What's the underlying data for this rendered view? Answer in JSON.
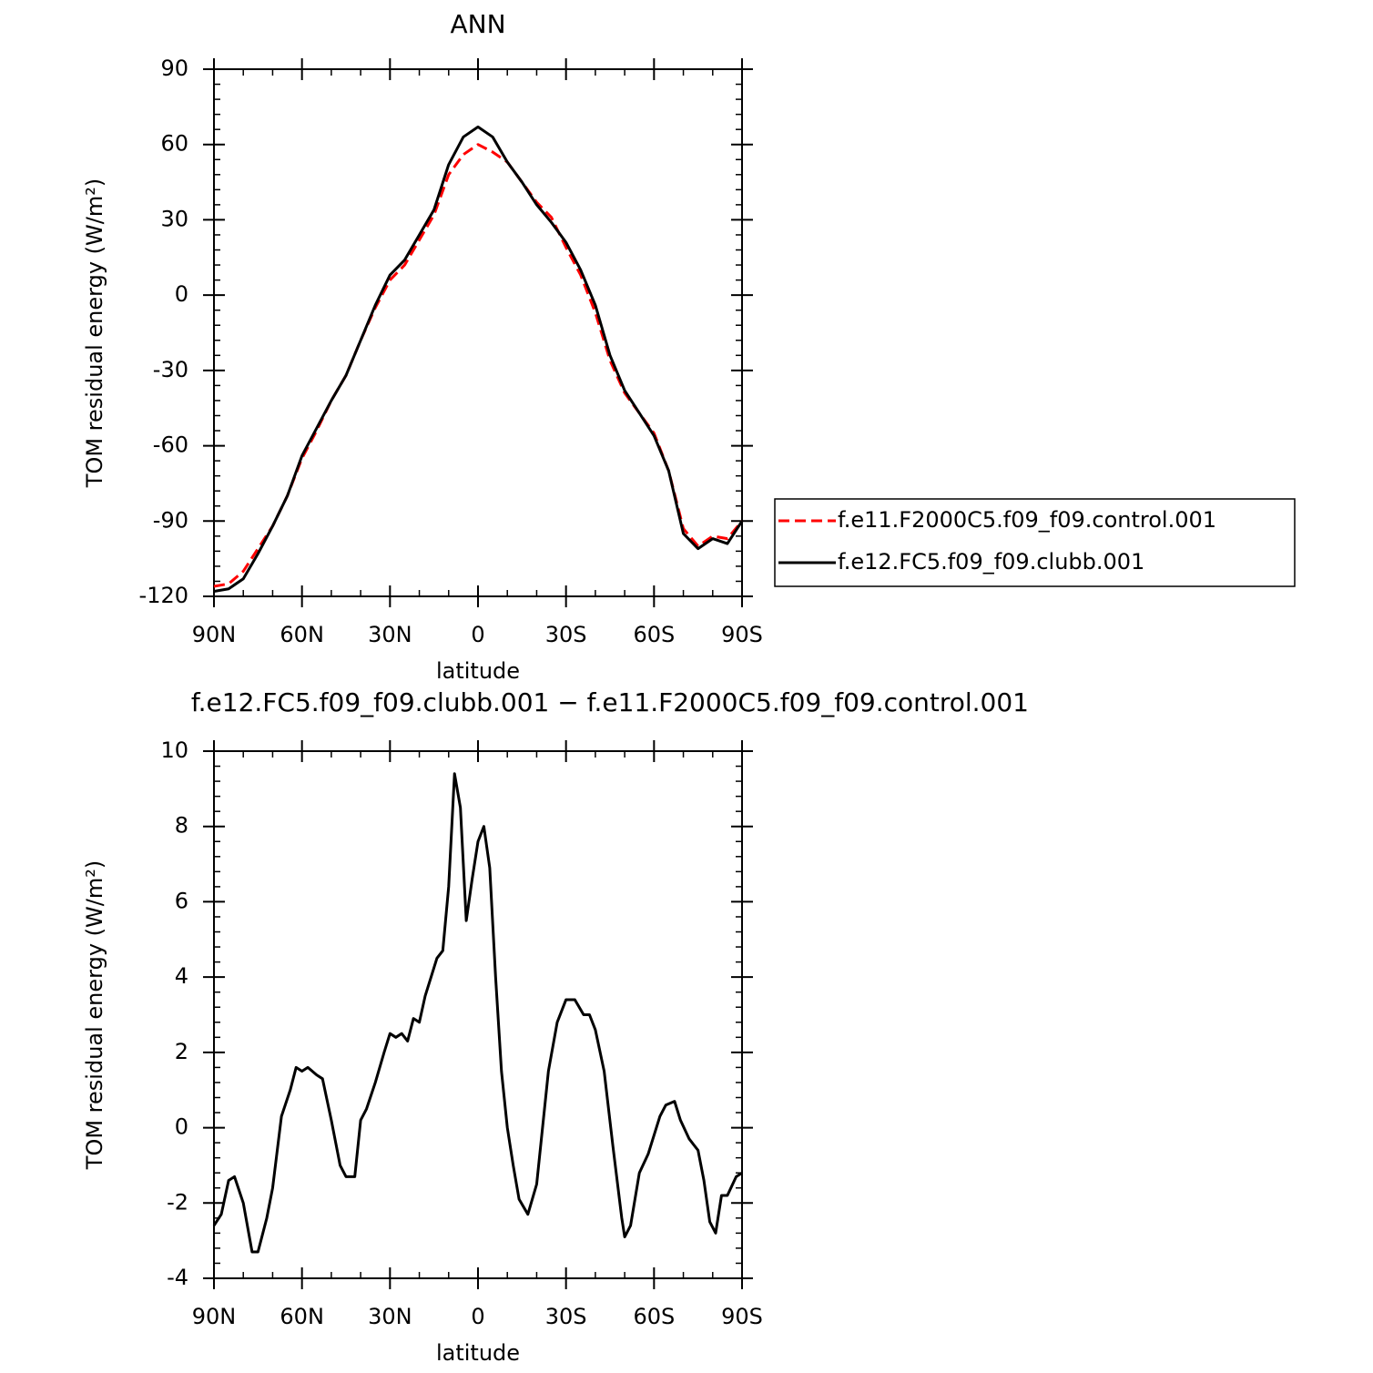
{
  "chart_data": [
    {
      "type": "line",
      "title": "ANN",
      "x_label": "latitude",
      "y_label": "TOM residual energy (W/m²)",
      "x": [
        90,
        85,
        80,
        75,
        70,
        65,
        60,
        55,
        50,
        45,
        40,
        35,
        30,
        25,
        20,
        15,
        10,
        5,
        0,
        -5,
        -10,
        -15,
        -20,
        -25,
        -30,
        -35,
        -40,
        -45,
        -50,
        -55,
        -60,
        -65,
        -70,
        -75,
        -80,
        -85,
        -90
      ],
      "series": [
        {
          "name": "f.e11.F2000C5.f09_f09.control.001",
          "color": "#ff0000",
          "dashed": true,
          "values": [
            -116,
            -115,
            -110,
            -101,
            -92,
            -80,
            -65,
            -54,
            -42,
            -32,
            -18,
            -5,
            6,
            12,
            22,
            32,
            48,
            56,
            60,
            57,
            53,
            45,
            37,
            31,
            19,
            8,
            -7,
            -26,
            -39,
            -47,
            -55,
            -70,
            -93,
            -100,
            -96,
            -97,
            -90
          ]
        },
        {
          "name": "f.e12.FC5.f09_f09.clubb.001",
          "color": "#000000",
          "dashed": false,
          "values": [
            -118,
            -117,
            -113,
            -103,
            -92,
            -80,
            -64,
            -53,
            -42,
            -32,
            -18,
            -4,
            8,
            14,
            24,
            34,
            52,
            63,
            67,
            63,
            53,
            45,
            36,
            29,
            21,
            10,
            -4,
            -24,
            -38,
            -47,
            -56,
            -70,
            -95,
            -101,
            -97,
            -99,
            -90
          ]
        }
      ],
      "xlim": [
        90,
        -90
      ],
      "xticks": [
        {
          "value": 90,
          "label": "90N"
        },
        {
          "value": 60,
          "label": "60N"
        },
        {
          "value": 30,
          "label": "30N"
        },
        0,
        {
          "value": -30,
          "label": "30S"
        },
        {
          "value": -60,
          "label": "60S"
        },
        {
          "value": -90,
          "label": "90S"
        }
      ],
      "ylim": [
        -120,
        90
      ],
      "yticks": [
        -120,
        -90,
        -60,
        -30,
        0,
        30,
        60,
        90
      ],
      "legend": "right"
    },
    {
      "type": "line",
      "title": "f.e12.FC5.f09_f09.clubb.001 − f.e11.F2000C5.f09_f09.control.001",
      "x_label": "latitude",
      "y_label": "TOM residual energy (W/m²)",
      "x": [
        90,
        87.5,
        85,
        83,
        80,
        77,
        75,
        72,
        70,
        67,
        64,
        62,
        60,
        58,
        55,
        53,
        50,
        47,
        45,
        42,
        40,
        38,
        35,
        32,
        30,
        28,
        26,
        24,
        22,
        20,
        18,
        16,
        14,
        12,
        10,
        8,
        6,
        4,
        2,
        0,
        -2,
        -4,
        -6,
        -8,
        -10,
        -12,
        -14,
        -17,
        -20,
        -24,
        -27,
        -30,
        -33,
        -36,
        -38,
        -40,
        -43,
        -46,
        -49,
        -50,
        -52,
        -55,
        -58,
        -62,
        -64,
        -67,
        -69,
        -72,
        -75,
        -77,
        -79,
        -81,
        -83,
        -85,
        -88,
        -90
      ],
      "series": [
        {
          "color": "#000000",
          "dashed": false,
          "values": [
            -2.6,
            -2.3,
            -1.4,
            -1.3,
            -2.0,
            -3.3,
            -3.3,
            -2.4,
            -1.6,
            0.3,
            1.0,
            1.6,
            1.5,
            1.6,
            1.4,
            1.3,
            0.2,
            -1.0,
            -1.3,
            -1.3,
            0.2,
            0.5,
            1.2,
            2.0,
            2.5,
            2.4,
            2.5,
            2.3,
            2.9,
            2.8,
            3.5,
            4.0,
            4.5,
            4.7,
            6.4,
            9.4,
            8.5,
            5.5,
            6.6,
            7.6,
            8.0,
            6.9,
            4.0,
            1.5,
            0.0,
            -1.0,
            -1.9,
            -2.3,
            -1.5,
            1.5,
            2.8,
            3.4,
            3.4,
            3.0,
            3.0,
            2.6,
            1.5,
            -0.5,
            -2.4,
            -2.9,
            -2.6,
            -1.2,
            -0.7,
            0.3,
            0.6,
            0.7,
            0.2,
            -0.3,
            -0.6,
            -1.4,
            -2.5,
            -2.8,
            -1.8,
            -1.8,
            -1.3,
            -1.2
          ]
        }
      ],
      "xlim": [
        90,
        -90
      ],
      "xticks": [
        {
          "value": 90,
          "label": "90N"
        },
        {
          "value": 60,
          "label": "60N"
        },
        {
          "value": 30,
          "label": "30N"
        },
        0,
        {
          "value": -30,
          "label": "30S"
        },
        {
          "value": -60,
          "label": "60S"
        },
        {
          "value": -90,
          "label": "90S"
        }
      ],
      "ylim": [
        -4,
        10
      ],
      "yticks": [
        -4,
        -2,
        0,
        2,
        4,
        6,
        8,
        10
      ]
    }
  ]
}
